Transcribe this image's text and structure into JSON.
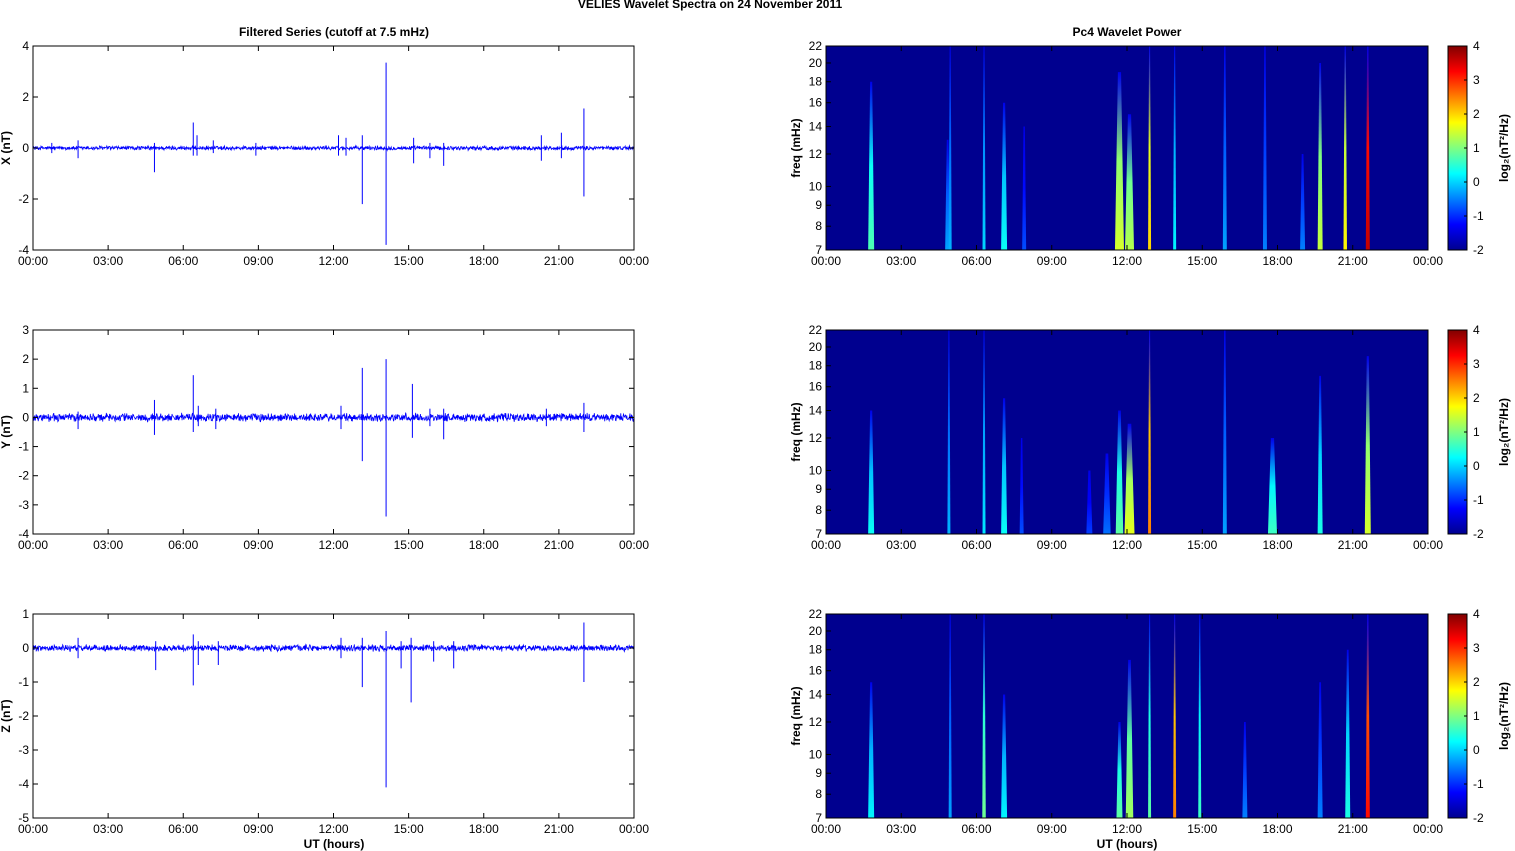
{
  "figure": {
    "title": "VELIES Wavelet Spectra on 24 November  2011",
    "left_title": "Filtered Series (cutoff at 7.5 mHz)",
    "right_title": "Pc4 Wavelet Power",
    "xlabel": "UT (hours)"
  },
  "colors": {
    "trace": "#0000ff",
    "axis": "#000000",
    "colormap": [
      "#00008f",
      "#0000ff",
      "#0080ff",
      "#00ffff",
      "#80ff80",
      "#ffff00",
      "#ff8000",
      "#ff0000",
      "#800000"
    ]
  },
  "chart_data": [
    {
      "type": "line",
      "name": "x-series",
      "ylabel": "X (nT)",
      "xlim_hours": [
        0,
        24
      ],
      "ylim": [
        -4,
        4
      ],
      "xticks": [
        "00:00",
        "03:00",
        "06:00",
        "09:00",
        "12:00",
        "15:00",
        "18:00",
        "21:00",
        "00:00"
      ],
      "yticks": [
        "-4",
        "-2",
        "0",
        "2",
        "4"
      ],
      "noise_amp": 0.07,
      "spikes": [
        {
          "t": 0.75,
          "up": 0.2,
          "down": -0.2
        },
        {
          "t": 1.8,
          "up": 0.3,
          "down": -0.4
        },
        {
          "t": 4.85,
          "up": 0.2,
          "down": -0.95
        },
        {
          "t": 6.4,
          "up": 1.0,
          "down": -0.3
        },
        {
          "t": 6.55,
          "up": 0.5,
          "down": -0.3
        },
        {
          "t": 7.2,
          "up": 0.3,
          "down": -0.2
        },
        {
          "t": 8.9,
          "up": 0.2,
          "down": -0.3
        },
        {
          "t": 12.2,
          "up": 0.5,
          "down": -0.3
        },
        {
          "t": 12.5,
          "up": 0.4,
          "down": -0.3
        },
        {
          "t": 13.15,
          "up": 0.5,
          "down": -2.2
        },
        {
          "t": 14.1,
          "up": 3.35,
          "down": -3.8
        },
        {
          "t": 15.2,
          "up": 0.4,
          "down": -0.6
        },
        {
          "t": 15.85,
          "up": 0.2,
          "down": -0.4
        },
        {
          "t": 16.4,
          "up": 0.2,
          "down": -0.7
        },
        {
          "t": 20.3,
          "up": 0.5,
          "down": -0.5
        },
        {
          "t": 21.1,
          "up": 0.6,
          "down": -0.4
        },
        {
          "t": 22.0,
          "up": 1.55,
          "down": -1.9
        }
      ]
    },
    {
      "type": "line",
      "name": "y-series",
      "ylabel": "Y (nT)",
      "xlim_hours": [
        0,
        24
      ],
      "ylim": [
        -4,
        3
      ],
      "xticks": [
        "00:00",
        "03:00",
        "06:00",
        "09:00",
        "12:00",
        "15:00",
        "18:00",
        "21:00",
        "00:00"
      ],
      "yticks": [
        "-4",
        "-3",
        "-2",
        "-1",
        "0",
        "1",
        "2",
        "3"
      ],
      "noise_amp": 0.12,
      "spikes": [
        {
          "t": 1.8,
          "up": 0.2,
          "down": -0.4
        },
        {
          "t": 4.85,
          "up": 0.6,
          "down": -0.6
        },
        {
          "t": 6.4,
          "up": 1.45,
          "down": -0.5
        },
        {
          "t": 6.6,
          "up": 0.4,
          "down": -0.3
        },
        {
          "t": 7.3,
          "up": 0.3,
          "down": -0.4
        },
        {
          "t": 12.3,
          "up": 0.4,
          "down": -0.4
        },
        {
          "t": 13.15,
          "up": 1.7,
          "down": -1.5
        },
        {
          "t": 14.1,
          "up": 2.0,
          "down": -3.4
        },
        {
          "t": 15.15,
          "up": 1.15,
          "down": -0.7
        },
        {
          "t": 15.85,
          "up": 0.3,
          "down": -0.3
        },
        {
          "t": 16.4,
          "up": 0.3,
          "down": -0.75
        },
        {
          "t": 20.5,
          "up": 0.3,
          "down": -0.3
        },
        {
          "t": 22.0,
          "up": 0.5,
          "down": -0.5
        }
      ]
    },
    {
      "type": "line",
      "name": "z-series",
      "ylabel": "Z (nT)",
      "xlim_hours": [
        0,
        24
      ],
      "ylim": [
        -5,
        1
      ],
      "xticks": [
        "00:00",
        "03:00",
        "06:00",
        "09:00",
        "12:00",
        "15:00",
        "18:00",
        "21:00",
        "00:00"
      ],
      "yticks": [
        "-5",
        "-4",
        "-3",
        "-2",
        "-1",
        "0",
        "1"
      ],
      "noise_amp": 0.08,
      "spikes": [
        {
          "t": 1.8,
          "up": 0.3,
          "down": -0.3
        },
        {
          "t": 4.9,
          "up": 0.2,
          "down": -0.65
        },
        {
          "t": 6.4,
          "up": 0.4,
          "down": -1.1
        },
        {
          "t": 6.6,
          "up": 0.2,
          "down": -0.5
        },
        {
          "t": 7.4,
          "up": 0.2,
          "down": -0.5
        },
        {
          "t": 12.3,
          "up": 0.3,
          "down": -0.3
        },
        {
          "t": 13.15,
          "up": 0.3,
          "down": -1.15
        },
        {
          "t": 14.1,
          "up": 0.5,
          "down": -4.1
        },
        {
          "t": 14.7,
          "up": 0.2,
          "down": -0.6
        },
        {
          "t": 15.1,
          "up": 0.3,
          "down": -1.6
        },
        {
          "t": 16.0,
          "up": 0.2,
          "down": -0.4
        },
        {
          "t": 16.8,
          "up": 0.2,
          "down": -0.6
        },
        {
          "t": 22.0,
          "up": 0.75,
          "down": -1.0
        }
      ]
    },
    {
      "type": "heatmap",
      "name": "x-wavelet",
      "ylabel": "freq (mHz)",
      "cbar_label": "log₂(nT²/Hz)",
      "xlim_hours": [
        0,
        24
      ],
      "ylim": [
        7,
        22
      ],
      "yscale": "log",
      "clim": [
        -2,
        4
      ],
      "xticks": [
        "00:00",
        "03:00",
        "06:00",
        "09:00",
        "12:00",
        "15:00",
        "18:00",
        "21:00",
        "00:00"
      ],
      "yticks": [
        7,
        8,
        9,
        10,
        12,
        14,
        16,
        18,
        20,
        22
      ],
      "cticks": [
        "-2",
        "-1",
        "0",
        "1",
        "2",
        "3",
        "4"
      ],
      "background": -2,
      "streaks": [
        {
          "t": 1.8,
          "fmax": 18,
          "v": 0.7,
          "w": 0.12
        },
        {
          "t": 4.85,
          "fmax": 13,
          "v": -0.3,
          "w": 0.1
        },
        {
          "t": 4.95,
          "fmax": 22,
          "v": -0.2,
          "w": 0.05
        },
        {
          "t": 6.3,
          "fmax": 22,
          "v": 0.0,
          "w": 0.06
        },
        {
          "t": 7.1,
          "fmax": 16,
          "v": 0.3,
          "w": 0.12
        },
        {
          "t": 7.9,
          "fmax": 14,
          "v": -0.8,
          "w": 0.08
        },
        {
          "t": 11.7,
          "fmax": 19,
          "v": 1.5,
          "w": 0.18
        },
        {
          "t": 12.1,
          "fmax": 15,
          "v": 1.3,
          "w": 0.18
        },
        {
          "t": 12.9,
          "fmax": 22,
          "v": 2.0,
          "w": 0.06
        },
        {
          "t": 13.9,
          "fmax": 22,
          "v": 0.2,
          "w": 0.05
        },
        {
          "t": 15.9,
          "fmax": 22,
          "v": -0.3,
          "w": 0.08
        },
        {
          "t": 17.5,
          "fmax": 22,
          "v": -0.5,
          "w": 0.08
        },
        {
          "t": 19.0,
          "fmax": 12,
          "v": -0.5,
          "w": 0.1
        },
        {
          "t": 19.7,
          "fmax": 20,
          "v": 1.4,
          "w": 0.1
        },
        {
          "t": 20.7,
          "fmax": 22,
          "v": 1.8,
          "w": 0.07
        },
        {
          "t": 21.6,
          "fmax": 22,
          "v": 3.6,
          "w": 0.08
        }
      ]
    },
    {
      "type": "heatmap",
      "name": "y-wavelet",
      "ylabel": "freq (mHz)",
      "cbar_label": "log₂(nT²/Hz)",
      "xlim_hours": [
        0,
        24
      ],
      "ylim": [
        7,
        22
      ],
      "yscale": "log",
      "clim": [
        -2,
        4
      ],
      "xticks": [
        "00:00",
        "03:00",
        "06:00",
        "09:00",
        "12:00",
        "15:00",
        "18:00",
        "21:00",
        "00:00"
      ],
      "yticks": [
        7,
        8,
        9,
        10,
        12,
        14,
        16,
        18,
        20,
        22
      ],
      "cticks": [
        "-2",
        "-1",
        "0",
        "1",
        "2",
        "3",
        "4"
      ],
      "background": -2,
      "streaks": [
        {
          "t": 1.8,
          "fmax": 14,
          "v": 0.3,
          "w": 0.12
        },
        {
          "t": 4.9,
          "fmax": 22,
          "v": -0.2,
          "w": 0.06
        },
        {
          "t": 6.3,
          "fmax": 22,
          "v": 0.1,
          "w": 0.06
        },
        {
          "t": 7.1,
          "fmax": 15,
          "v": 0.3,
          "w": 0.12
        },
        {
          "t": 7.8,
          "fmax": 12,
          "v": -0.8,
          "w": 0.08
        },
        {
          "t": 10.5,
          "fmax": 10,
          "v": -0.9,
          "w": 0.12
        },
        {
          "t": 11.2,
          "fmax": 11,
          "v": -0.6,
          "w": 0.15
        },
        {
          "t": 11.7,
          "fmax": 14,
          "v": 0.8,
          "w": 0.15
        },
        {
          "t": 12.1,
          "fmax": 13,
          "v": 1.6,
          "w": 0.2
        },
        {
          "t": 12.9,
          "fmax": 22,
          "v": 2.5,
          "w": 0.06
        },
        {
          "t": 15.9,
          "fmax": 22,
          "v": -0.3,
          "w": 0.08
        },
        {
          "t": 17.8,
          "fmax": 12,
          "v": 0.6,
          "w": 0.18
        },
        {
          "t": 19.7,
          "fmax": 17,
          "v": 0.4,
          "w": 0.1
        },
        {
          "t": 21.6,
          "fmax": 19,
          "v": 1.5,
          "w": 0.12
        }
      ]
    },
    {
      "type": "heatmap",
      "name": "z-wavelet",
      "ylabel": "freq (mHz)",
      "cbar_label": "log₂(nT²/Hz)",
      "xlim_hours": [
        0,
        24
      ],
      "ylim": [
        7,
        22
      ],
      "yscale": "log",
      "clim": [
        -2,
        4
      ],
      "xticks": [
        "00:00",
        "03:00",
        "06:00",
        "09:00",
        "12:00",
        "15:00",
        "18:00",
        "21:00",
        "00:00"
      ],
      "yticks": [
        7,
        8,
        9,
        10,
        12,
        14,
        16,
        18,
        20,
        22
      ],
      "cticks": [
        "-2",
        "-1",
        "0",
        "1",
        "2",
        "3",
        "4"
      ],
      "background": -2,
      "streaks": [
        {
          "t": 1.8,
          "fmax": 15,
          "v": 0.2,
          "w": 0.12
        },
        {
          "t": 4.95,
          "fmax": 22,
          "v": -0.3,
          "w": 0.06
        },
        {
          "t": 6.3,
          "fmax": 22,
          "v": 0.9,
          "w": 0.07
        },
        {
          "t": 7.1,
          "fmax": 14,
          "v": 0.2,
          "w": 0.12
        },
        {
          "t": 11.7,
          "fmax": 12,
          "v": 0.8,
          "w": 0.12
        },
        {
          "t": 12.1,
          "fmax": 17,
          "v": 1.2,
          "w": 0.15
        },
        {
          "t": 12.9,
          "fmax": 22,
          "v": 0.8,
          "w": 0.05
        },
        {
          "t": 13.9,
          "fmax": 22,
          "v": 2.5,
          "w": 0.06
        },
        {
          "t": 14.9,
          "fmax": 22,
          "v": 0.6,
          "w": 0.06
        },
        {
          "t": 16.7,
          "fmax": 12,
          "v": -0.5,
          "w": 0.1
        },
        {
          "t": 19.7,
          "fmax": 15,
          "v": -0.5,
          "w": 0.1
        },
        {
          "t": 20.8,
          "fmax": 18,
          "v": 0.4,
          "w": 0.1
        },
        {
          "t": 21.6,
          "fmax": 22,
          "v": 3.2,
          "w": 0.08
        }
      ]
    }
  ]
}
